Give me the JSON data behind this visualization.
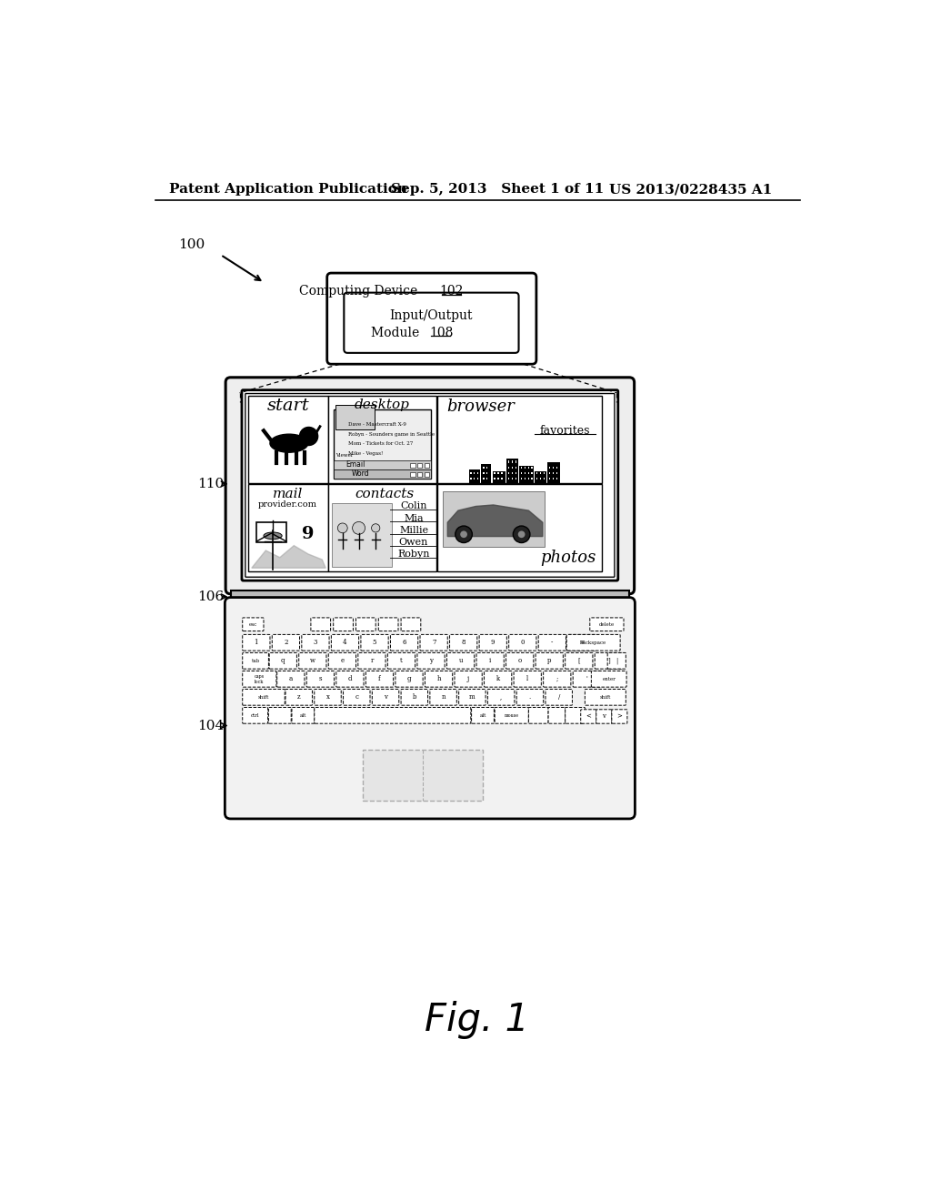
{
  "bg_color": "#ffffff",
  "header_left": "Patent Application Publication",
  "header_mid": "Sep. 5, 2013   Sheet 1 of 11",
  "header_right": "US 2013/0228435 A1",
  "fig_label": "Fig. 1",
  "label_100": "100",
  "label_104": "104",
  "label_106": "106",
  "label_110": "110",
  "computing_device_line1": "Computing Device ",
  "computing_device_num": "102",
  "io_line1": "Input/Output",
  "io_line2": "Module ",
  "io_num": "108",
  "contacts_names": [
    "Colin",
    "Mia",
    "Millie",
    "Owen",
    "Robyn"
  ],
  "desktop_items": [
    "Mike - Vegas!",
    "Mom - Tickets for Oct. 27",
    "Robyn - Sounders game in Seattle",
    "Dave - Mastercraft X-9"
  ]
}
